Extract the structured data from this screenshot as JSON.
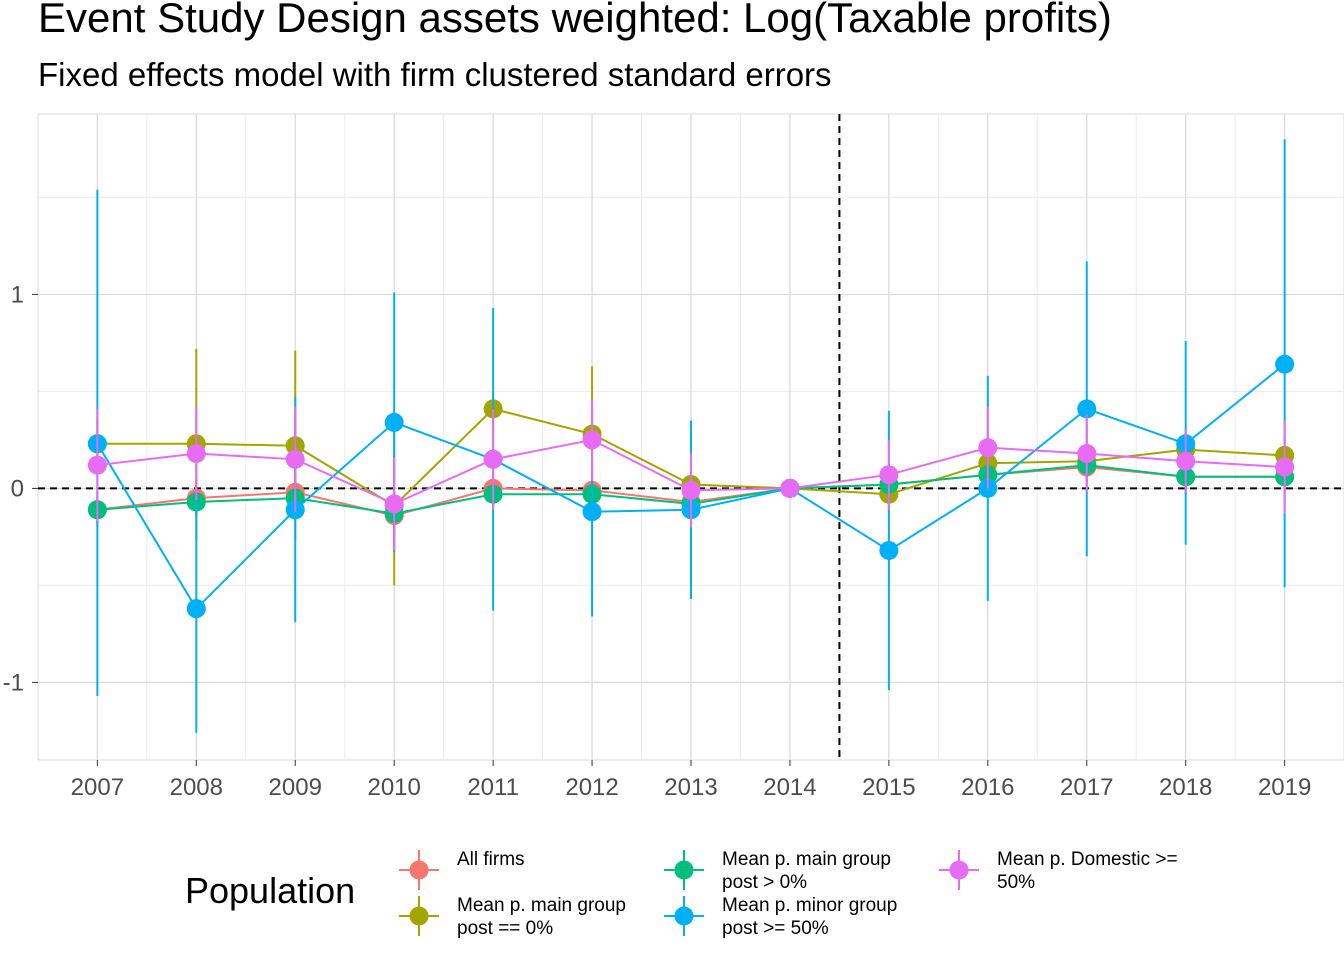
{
  "chart_data": {
    "type": "line",
    "title": "Event Study Design assets weighted: Log(Taxable profits)",
    "subtitle": "Fixed effects model with firm clustered standard errors",
    "xlabel": "",
    "ylabel": "",
    "x": [
      2007,
      2008,
      2009,
      2010,
      2011,
      2012,
      2013,
      2014,
      2015,
      2016,
      2017,
      2018,
      2019
    ],
    "yticks": [
      -1,
      0,
      1
    ],
    "ylim": [
      -1.4,
      1.93
    ],
    "reference_lines": {
      "y": 0,
      "x": 2014.5,
      "style": "dashed"
    },
    "grid": true,
    "legend": {
      "title": "Population",
      "position": "bottom"
    },
    "series": [
      {
        "name": "All firms",
        "color": "#F8766D",
        "values": [
          -0.11,
          -0.05,
          -0.02,
          -0.14,
          0.0,
          -0.01,
          -0.07,
          0.0,
          0.02,
          0.07,
          0.11,
          0.06,
          0.06
        ],
        "lower": [
          -0.2,
          -0.15,
          -0.12,
          -0.26,
          -0.08,
          -0.1,
          -0.15,
          0.0,
          -0.06,
          -0.03,
          0.02,
          -0.03,
          -0.04
        ],
        "upper": [
          -0.02,
          0.05,
          0.08,
          -0.02,
          0.08,
          0.08,
          0.01,
          0.0,
          0.1,
          0.17,
          0.2,
          0.15,
          0.16
        ]
      },
      {
        "name": "Mean p. main group\npost == 0%",
        "color": "#A3A500",
        "values": [
          0.23,
          0.23,
          0.22,
          -0.09,
          0.41,
          0.28,
          0.02,
          0.0,
          -0.03,
          0.13,
          0.14,
          0.2,
          0.17
        ],
        "lower": [
          0.1,
          -0.27,
          -0.27,
          -0.5,
          0.33,
          -0.07,
          -0.05,
          0.0,
          -0.1,
          0.03,
          0.04,
          0.1,
          0.07
        ],
        "upper": [
          0.36,
          0.72,
          0.71,
          0.32,
          0.49,
          0.63,
          0.09,
          0.0,
          0.04,
          0.23,
          0.24,
          0.3,
          0.27
        ]
      },
      {
        "name": "Mean p. main group\npost > 0%",
        "color": "#00BF7D",
        "values": [
          -0.11,
          -0.07,
          -0.05,
          -0.13,
          -0.03,
          -0.03,
          -0.08,
          0.0,
          0.02,
          0.07,
          0.12,
          0.06,
          0.06
        ],
        "lower": [
          -0.18,
          -0.14,
          -0.12,
          -0.2,
          -0.1,
          -0.1,
          -0.15,
          0.0,
          -0.05,
          0.0,
          0.05,
          -0.01,
          -0.01
        ],
        "upper": [
          -0.04,
          0.0,
          0.02,
          -0.06,
          0.04,
          0.04,
          -0.01,
          0.0,
          0.09,
          0.14,
          0.19,
          0.13,
          0.13
        ]
      },
      {
        "name": "Mean p. minor group\npost >= 50%",
        "color": "#00B0F6",
        "values": [
          0.23,
          -0.62,
          -0.11,
          0.34,
          0.15,
          -0.12,
          -0.11,
          0.0,
          -0.32,
          0.0,
          0.41,
          0.23,
          0.64
        ],
        "lower": [
          -1.07,
          -1.26,
          -0.69,
          -0.33,
          -0.63,
          -0.66,
          -0.57,
          0.0,
          -1.04,
          -0.58,
          -0.35,
          -0.29,
          -0.51
        ],
        "upper": [
          1.54,
          0.02,
          0.47,
          1.01,
          0.93,
          0.42,
          0.35,
          0.0,
          0.4,
          0.58,
          1.17,
          0.76,
          1.8
        ]
      },
      {
        "name": "Mean p. Domestic >=\n50%",
        "color": "#E76BF3",
        "values": [
          0.12,
          0.18,
          0.15,
          -0.08,
          0.15,
          0.25,
          -0.01,
          0.0,
          0.07,
          0.21,
          0.18,
          0.14,
          0.11
        ],
        "lower": [
          -0.17,
          -0.06,
          -0.12,
          -0.32,
          -0.11,
          0.04,
          -0.2,
          0.0,
          -0.11,
          0.0,
          -0.02,
          -0.02,
          -0.13
        ],
        "upper": [
          0.41,
          0.42,
          0.42,
          0.16,
          0.41,
          0.46,
          0.18,
          0.0,
          0.25,
          0.42,
          0.38,
          0.3,
          0.35
        ]
      }
    ]
  }
}
